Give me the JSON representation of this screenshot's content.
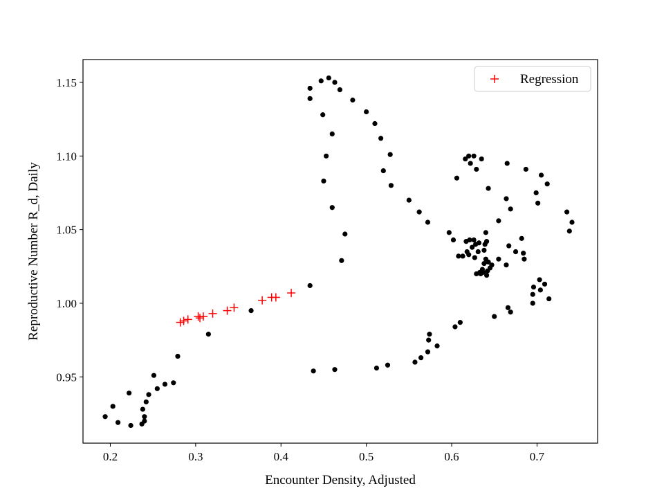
{
  "chart_data": {
    "type": "scatter",
    "title": "",
    "xlabel": "Encounter Density, Adjusted",
    "ylabel": "Reproductive Number R_d, Daily",
    "xlim": [
      0.168,
      0.771
    ],
    "ylim": [
      0.905,
      1.1655
    ],
    "xticks": [
      0.2,
      0.3,
      0.4,
      0.5,
      0.6,
      0.7
    ],
    "xtick_labels": [
      "0.2",
      "0.3",
      "0.4",
      "0.5",
      "0.6",
      "0.7"
    ],
    "yticks": [
      0.95,
      1.0,
      1.05,
      1.1,
      1.15
    ],
    "ytick_labels": [
      "0.95",
      "1.00",
      "1.05",
      "1.10",
      "1.15"
    ],
    "grid": false,
    "legend_position": "top-right",
    "series": [
      {
        "color": "#000000",
        "marker": "circle",
        "points": [
          [
            0.194,
            0.923
          ],
          [
            0.203,
            0.93
          ],
          [
            0.209,
            0.919
          ],
          [
            0.222,
            0.939
          ],
          [
            0.224,
            0.917
          ],
          [
            0.237,
            0.918
          ],
          [
            0.238,
            0.928
          ],
          [
            0.24,
            0.923
          ],
          [
            0.24,
            0.92
          ],
          [
            0.242,
            0.933
          ],
          [
            0.245,
            0.938
          ],
          [
            0.251,
            0.951
          ],
          [
            0.255,
            0.942
          ],
          [
            0.264,
            0.945
          ],
          [
            0.274,
            0.946
          ],
          [
            0.279,
            0.964
          ],
          [
            0.315,
            0.979
          ],
          [
            0.365,
            0.995
          ],
          [
            0.434,
            1.012
          ],
          [
            0.438,
            0.954
          ],
          [
            0.463,
            0.955
          ],
          [
            0.512,
            0.956
          ],
          [
            0.525,
            0.958
          ],
          [
            0.557,
            0.96
          ],
          [
            0.564,
            0.963
          ],
          [
            0.572,
            0.967
          ],
          [
            0.573,
            0.975
          ],
          [
            0.574,
            0.979
          ],
          [
            0.583,
            0.971
          ],
          [
            0.604,
            0.984
          ],
          [
            0.61,
            0.987
          ],
          [
            0.65,
            0.991
          ],
          [
            0.666,
            0.997
          ],
          [
            0.669,
            0.994
          ],
          [
            0.695,
            1.0
          ],
          [
            0.695,
            1.006
          ],
          [
            0.696,
            1.011
          ],
          [
            0.703,
            1.016
          ],
          [
            0.704,
            1.009
          ],
          [
            0.709,
            1.013
          ],
          [
            0.714,
            1.003
          ],
          [
            0.434,
            1.146
          ],
          [
            0.434,
            1.139
          ],
          [
            0.447,
            1.151
          ],
          [
            0.456,
            1.153
          ],
          [
            0.463,
            1.15
          ],
          [
            0.469,
            1.145
          ],
          [
            0.484,
            1.138
          ],
          [
            0.5,
            1.13
          ],
          [
            0.51,
            1.122
          ],
          [
            0.517,
            1.112
          ],
          [
            0.528,
            1.101
          ],
          [
            0.52,
            1.09
          ],
          [
            0.529,
            1.08
          ],
          [
            0.55,
            1.07
          ],
          [
            0.562,
            1.062
          ],
          [
            0.572,
            1.055
          ],
          [
            0.597,
            1.048
          ],
          [
            0.602,
            1.043
          ],
          [
            0.449,
            1.128
          ],
          [
            0.46,
            1.115
          ],
          [
            0.453,
            1.1
          ],
          [
            0.45,
            1.083
          ],
          [
            0.46,
            1.065
          ],
          [
            0.475,
            1.047
          ],
          [
            0.471,
            1.029
          ],
          [
            0.606,
            1.085
          ],
          [
            0.616,
            1.098
          ],
          [
            0.62,
            1.1
          ],
          [
            0.622,
            1.095
          ],
          [
            0.626,
            1.1
          ],
          [
            0.629,
            1.091
          ],
          [
            0.635,
            1.098
          ],
          [
            0.643,
            1.078
          ],
          [
            0.655,
            1.056
          ],
          [
            0.664,
            1.071
          ],
          [
            0.665,
            1.095
          ],
          [
            0.669,
            1.064
          ],
          [
            0.687,
            1.091
          ],
          [
            0.699,
            1.075
          ],
          [
            0.701,
            1.068
          ],
          [
            0.705,
            1.087
          ],
          [
            0.712,
            1.081
          ],
          [
            0.735,
            1.062
          ],
          [
            0.738,
            1.049
          ],
          [
            0.741,
            1.055
          ],
          [
            0.608,
            1.032
          ],
          [
            0.613,
            1.032
          ],
          [
            0.617,
            1.042
          ],
          [
            0.618,
            1.035
          ],
          [
            0.62,
            1.033
          ],
          [
            0.621,
            1.043
          ],
          [
            0.624,
            1.038
          ],
          [
            0.626,
            1.043
          ],
          [
            0.627,
            1.031
          ],
          [
            0.628,
            1.04
          ],
          [
            0.629,
            1.02
          ],
          [
            0.631,
            1.035
          ],
          [
            0.632,
            1.041
          ],
          [
            0.633,
            1.021
          ],
          [
            0.634,
            1.02
          ],
          [
            0.636,
            1.023
          ],
          [
            0.637,
            1.021
          ],
          [
            0.638,
            1.027
          ],
          [
            0.638,
            1.036
          ],
          [
            0.639,
            1.04
          ],
          [
            0.64,
            1.03
          ],
          [
            0.64,
            1.048
          ],
          [
            0.641,
            1.019
          ],
          [
            0.641,
            1.042
          ],
          [
            0.642,
            1.022
          ],
          [
            0.643,
            1.028
          ],
          [
            0.645,
            1.024
          ],
          [
            0.647,
            1.026
          ],
          [
            0.655,
            1.03
          ],
          [
            0.664,
            1.026
          ],
          [
            0.667,
            1.039
          ],
          [
            0.675,
            1.035
          ],
          [
            0.682,
            1.044
          ],
          [
            0.684,
            1.034
          ],
          [
            0.685,
            1.03
          ]
        ]
      },
      {
        "name": "Regression",
        "color": "#ff0000",
        "marker": "plus",
        "points": [
          [
            0.282,
            0.987
          ],
          [
            0.286,
            0.988
          ],
          [
            0.291,
            0.989
          ],
          [
            0.303,
            0.991
          ],
          [
            0.305,
            0.99
          ],
          [
            0.309,
            0.991
          ],
          [
            0.32,
            0.993
          ],
          [
            0.337,
            0.995
          ],
          [
            0.345,
            0.997
          ],
          [
            0.378,
            1.002
          ],
          [
            0.389,
            1.004
          ],
          [
            0.394,
            1.004
          ],
          [
            0.412,
            1.007
          ]
        ]
      }
    ]
  }
}
